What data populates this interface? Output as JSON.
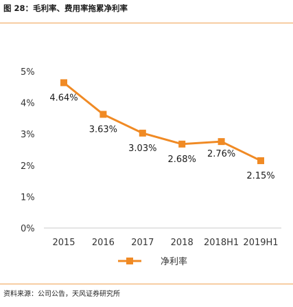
{
  "header": {
    "title": "图 28：毛利率、费用率拖累净利率"
  },
  "footer": {
    "source": "资料来源：公司公告，天风证券研究所"
  },
  "chart_data": {
    "type": "line",
    "categories": [
      "2015",
      "2016",
      "2017",
      "2018",
      "2018H1",
      "2019H1"
    ],
    "series": [
      {
        "name": "净利率",
        "values": [
          4.64,
          3.63,
          3.03,
          2.68,
          2.76,
          2.15
        ],
        "color": "#f08a24",
        "labels": [
          "4.64%",
          "3.63%",
          "3.03%",
          "2.68%",
          "2.76%",
          "2.15%"
        ]
      }
    ],
    "y_ticks": [
      "0%",
      "1%",
      "2%",
      "3%",
      "4%",
      "5%"
    ],
    "ylim": [
      0,
      5
    ],
    "grid": false,
    "legend": "bottom-center",
    "xlabel": "",
    "ylabel": ""
  }
}
